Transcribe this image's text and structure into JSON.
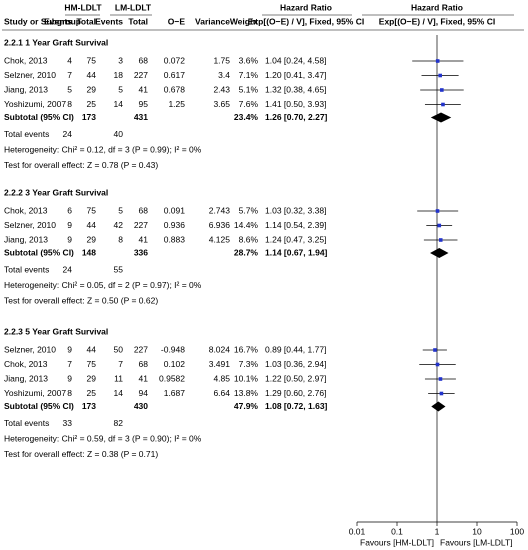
{
  "chart_data": {
    "type": "forest",
    "columns": {
      "group_hm": "HM-LDLT",
      "group_lm": "LM-LDLT",
      "hr_text_group": "Hazard Ratio",
      "hr_plot_group": "Hazard Ratio",
      "study": "Study or Subgroup",
      "hm_events": "Events",
      "hm_total": "Total",
      "lm_events": "Events",
      "lm_total": "Total",
      "oe": "O−E",
      "variance": "Variance",
      "weight": "Weight",
      "hr_text": "Exp[(O−E) / V], Fixed, 95% CI",
      "hr_plot": "Exp[(O−E) / V], Fixed, 95% CI"
    },
    "groups": [
      {
        "title": "2.2.1 1 Year Graft Survival",
        "studies": [
          {
            "name": "Chok, 2013",
            "hm_events": 4,
            "hm_total": 75,
            "lm_events": 3,
            "lm_total": 68,
            "oe": 0.072,
            "variance": 1.75,
            "weight": "3.6%",
            "label": "1.04 [0.24, 4.58]",
            "hr": 1.04,
            "lo": 0.24,
            "hi": 4.58
          },
          {
            "name": "Selzner, 2010",
            "hm_events": 7,
            "hm_total": 44,
            "lm_events": 18,
            "lm_total": 227,
            "oe": 0.617,
            "variance": 3.4,
            "weight": "7.1%",
            "label": "1.20 [0.41, 3.47]",
            "hr": 1.2,
            "lo": 0.41,
            "hi": 3.47
          },
          {
            "name": "Jiang, 2013",
            "hm_events": 5,
            "hm_total": 29,
            "lm_events": 5,
            "lm_total": 41,
            "oe": 0.678,
            "variance": 2.43,
            "weight": "5.1%",
            "label": "1.32 [0.38, 4.65]",
            "hr": 1.32,
            "lo": 0.38,
            "hi": 4.65
          },
          {
            "name": "Yoshizumi, 2007",
            "hm_events": 8,
            "hm_total": 25,
            "lm_events": 14,
            "lm_total": 95,
            "oe": 1.25,
            "variance": 3.65,
            "weight": "7.6%",
            "label": "1.41 [0.50, 3.93]",
            "hr": 1.41,
            "lo": 0.5,
            "hi": 3.93
          }
        ],
        "subtotal": {
          "name": "Subtotal (95% CI)",
          "hm_total": 173,
          "lm_total": 431,
          "weight": "23.4%",
          "label": "1.26 [0.70, 2.27]",
          "hr": 1.26,
          "lo": 0.7,
          "hi": 2.27
        },
        "total_events": {
          "name": "Total events",
          "hm": 24,
          "lm": 40
        },
        "heterogeneity": "Heterogeneity: Chi² = 0.12, df = 3 (P = 0.99); I² = 0%",
        "test": "Test for overall effect: Z = 0.78 (P = 0.43)"
      },
      {
        "title": "2.2.2 3 Year Graft Survival",
        "studies": [
          {
            "name": "Chok, 2013",
            "hm_events": 6,
            "hm_total": 75,
            "lm_events": 5,
            "lm_total": 68,
            "oe": 0.091,
            "variance": 2.743,
            "weight": "5.7%",
            "label": "1.03 [0.32, 3.38]",
            "hr": 1.03,
            "lo": 0.32,
            "hi": 3.38
          },
          {
            "name": "Selzner, 2010",
            "hm_events": 9,
            "hm_total": 44,
            "lm_events": 42,
            "lm_total": 227,
            "oe": 0.936,
            "variance": 6.936,
            "weight": "14.4%",
            "label": "1.14 [0.54, 2.39]",
            "hr": 1.14,
            "lo": 0.54,
            "hi": 2.39
          },
          {
            "name": "Jiang, 2013",
            "hm_events": 9,
            "hm_total": 29,
            "lm_events": 8,
            "lm_total": 41,
            "oe": 0.883,
            "variance": 4.125,
            "weight": "8.6%",
            "label": "1.24 [0.47, 3.25]",
            "hr": 1.24,
            "lo": 0.47,
            "hi": 3.25
          }
        ],
        "subtotal": {
          "name": "Subtotal (95% CI)",
          "hm_total": 148,
          "lm_total": 336,
          "weight": "28.7%",
          "label": "1.14 [0.67, 1.94]",
          "hr": 1.14,
          "lo": 0.67,
          "hi": 1.94
        },
        "total_events": {
          "name": "Total events",
          "hm": 24,
          "lm": 55
        },
        "heterogeneity": "Heterogeneity: Chi² = 0.05, df = 2 (P = 0.97); I² = 0%",
        "test": "Test for overall effect: Z = 0.50 (P = 0.62)"
      },
      {
        "title": "2.2.3 5 Year Graft Survival",
        "studies": [
          {
            "name": "Selzner, 2010",
            "hm_events": 9,
            "hm_total": 44,
            "lm_events": 50,
            "lm_total": 227,
            "oe": -0.948,
            "variance": 8.024,
            "weight": "16.7%",
            "label": "0.89 [0.44, 1.77]",
            "hr": 0.89,
            "lo": 0.44,
            "hi": 1.77
          },
          {
            "name": "Chok, 2013",
            "hm_events": 7,
            "hm_total": 75,
            "lm_events": 7,
            "lm_total": 68,
            "oe": 0.102,
            "variance": 3.491,
            "weight": "7.3%",
            "label": "1.03 [0.36, 2.94]",
            "hr": 1.03,
            "lo": 0.36,
            "hi": 2.94
          },
          {
            "name": "Jiang, 2013",
            "hm_events": 9,
            "hm_total": 29,
            "lm_events": 11,
            "lm_total": 41,
            "oe": 0.9582,
            "variance": 4.85,
            "weight": "10.1%",
            "label": "1.22 [0.50, 2.97]",
            "hr": 1.22,
            "lo": 0.5,
            "hi": 2.97
          },
          {
            "name": "Yoshizumi, 2007",
            "hm_events": 8,
            "hm_total": 25,
            "lm_events": 14,
            "lm_total": 94,
            "oe": 1.687,
            "variance": 6.64,
            "weight": "13.8%",
            "label": "1.29 [0.60, 2.76]",
            "hr": 1.29,
            "lo": 0.6,
            "hi": 2.76
          }
        ],
        "subtotal": {
          "name": "Subtotal (95% CI)",
          "hm_total": 173,
          "lm_total": 430,
          "weight": "47.9%",
          "label": "1.08 [0.72, 1.63]",
          "hr": 1.08,
          "lo": 0.72,
          "hi": 1.63
        },
        "total_events": {
          "name": "Total events",
          "hm": 33,
          "lm": 82
        },
        "heterogeneity": "Heterogeneity: Chi² = 0.59, df = 3 (P = 0.90); I² = 0%",
        "test": "Test for overall effect: Z = 0.38 (P = 0.71)"
      }
    ],
    "xlim": [
      0.01,
      100
    ],
    "xticks": [
      0.01,
      0.1,
      1,
      10,
      100
    ],
    "log_x": true,
    "x_label_left": "Favours [HM-LDLT]",
    "x_label_right": "Favours [LM-LDLT]",
    "marker_color": "#2233cc"
  }
}
